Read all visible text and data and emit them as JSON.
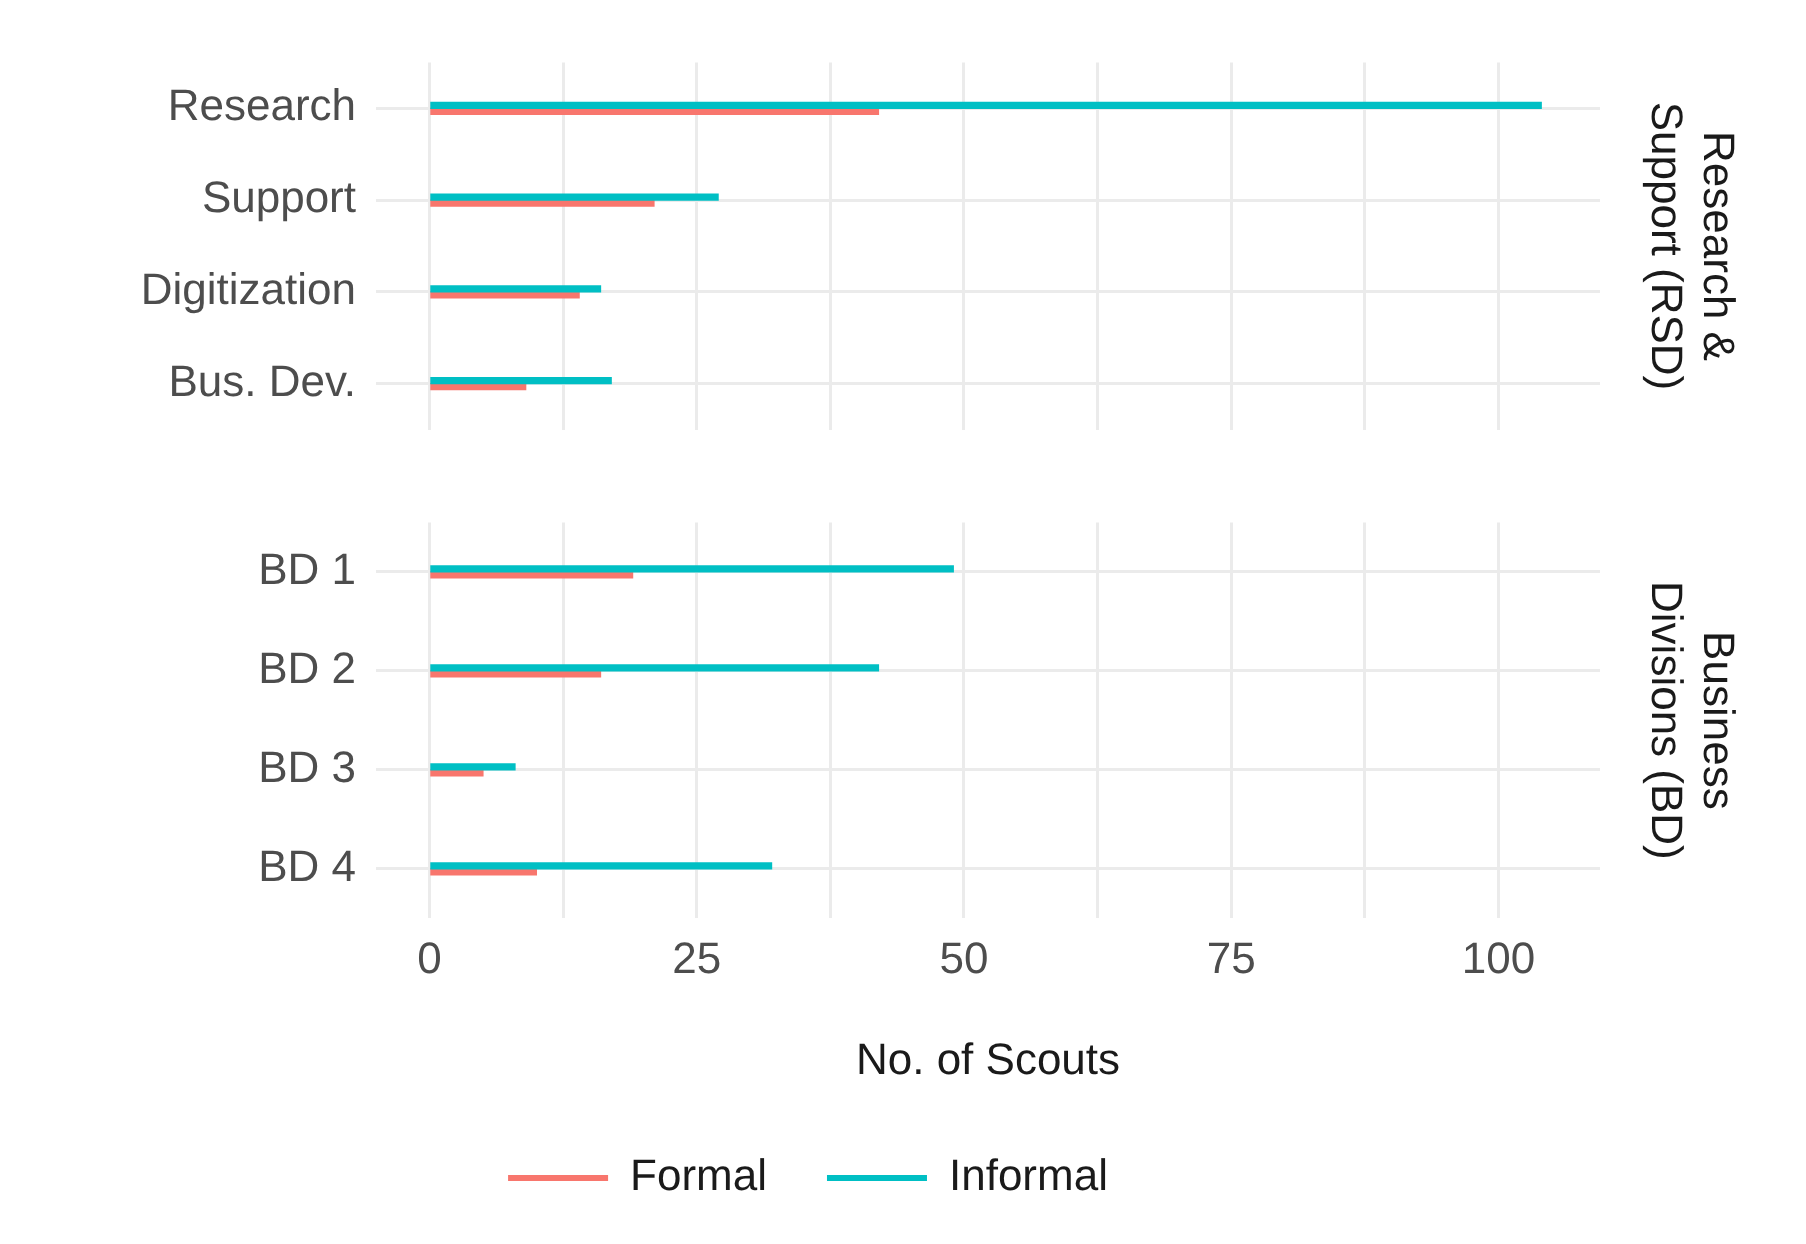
{
  "chart_data": [
    {
      "type": "bar",
      "orientation": "horizontal",
      "y2label": "Research & Support (RSD)",
      "categories": [
        "Research",
        "Support",
        "Digitization",
        "Bus. Dev."
      ],
      "series": [
        {
          "color": "#f8766d",
          "values": [
            42,
            21,
            14,
            9
          ]
        },
        {
          "color": "#00bfc4",
          "values": [
            104,
            27,
            16,
            17
          ]
        }
      ],
      "xlim": [
        -5,
        109.5
      ],
      "xticks": [
        0,
        {
          "value": 12.5,
          "label": null
        },
        25,
        {
          "value": 37.5,
          "label": null
        },
        50,
        {
          "value": 62.5,
          "label": null
        },
        75,
        {
          "value": 87.5,
          "label": null
        },
        100
      ],
      "grid": true,
      "legend": false,
      "tick_labels": "y"
    },
    {
      "type": "bar",
      "orientation": "horizontal",
      "y2label": "Business Divisions (BD)",
      "xlabel": "No. of Scouts",
      "categories": [
        "BD 1",
        "BD 2",
        "BD 3",
        "BD 4"
      ],
      "series": [
        {
          "name": "Formal",
          "color": "#f8766d",
          "values": [
            19,
            16,
            5,
            10
          ]
        },
        {
          "name": "Informal",
          "color": "#00bfc4",
          "values": [
            49,
            42,
            8,
            32
          ]
        }
      ],
      "xlim": [
        -5,
        109.5
      ],
      "xticks": [
        0,
        {
          "value": 12.5,
          "label": null
        },
        25,
        {
          "value": 37.5,
          "label": null
        },
        50,
        {
          "value": 62.5,
          "label": null
        },
        75,
        {
          "value": 87.5,
          "label": null
        },
        100
      ],
      "grid": true,
      "legend": "bottom"
    }
  ]
}
